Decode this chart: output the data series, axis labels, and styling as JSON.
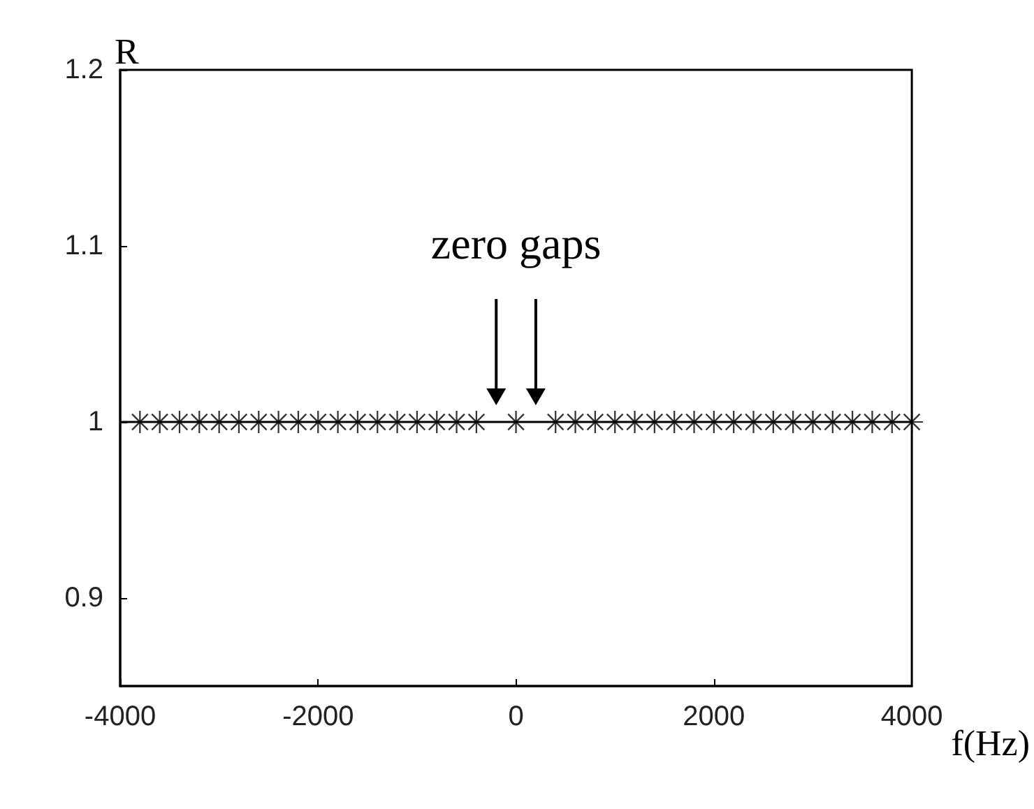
{
  "chart_data": {
    "type": "scatter",
    "xlabel": "f(Hz)",
    "ylabel": "R",
    "x": [
      -3800,
      -3600,
      -3400,
      -3200,
      -3000,
      -2800,
      -2600,
      -2400,
      -2200,
      -2000,
      -1800,
      -1600,
      -1400,
      -1200,
      -1000,
      -800,
      -600,
      -400,
      0,
      400,
      600,
      800,
      1000,
      1200,
      1400,
      1600,
      1800,
      2000,
      2200,
      2400,
      2600,
      2800,
      3000,
      3200,
      3400,
      3600,
      3800,
      4000
    ],
    "series": [
      {
        "color": "#000000",
        "values": [
          1,
          1,
          1,
          1,
          1,
          1,
          1,
          1,
          1,
          1,
          1,
          1,
          1,
          1,
          1,
          1,
          1,
          1,
          1,
          1,
          1,
          1,
          1,
          1,
          1,
          1,
          1,
          1,
          1,
          1,
          1,
          1,
          1,
          1,
          1,
          1,
          1,
          1
        ]
      }
    ],
    "marker": "star",
    "xlim": [
      -4000,
      4000
    ],
    "xticks": [
      -4000,
      -2000,
      0,
      2000,
      4000
    ],
    "ylim": [
      0.85,
      1.2
    ],
    "yticks": [
      0.9,
      1,
      1.1,
      1.2
    ],
    "ref_lines": [
      {
        "axis": "y",
        "value": 1,
        "color": "#000000"
      }
    ],
    "annotations": [
      "zero gaps"
    ]
  }
}
